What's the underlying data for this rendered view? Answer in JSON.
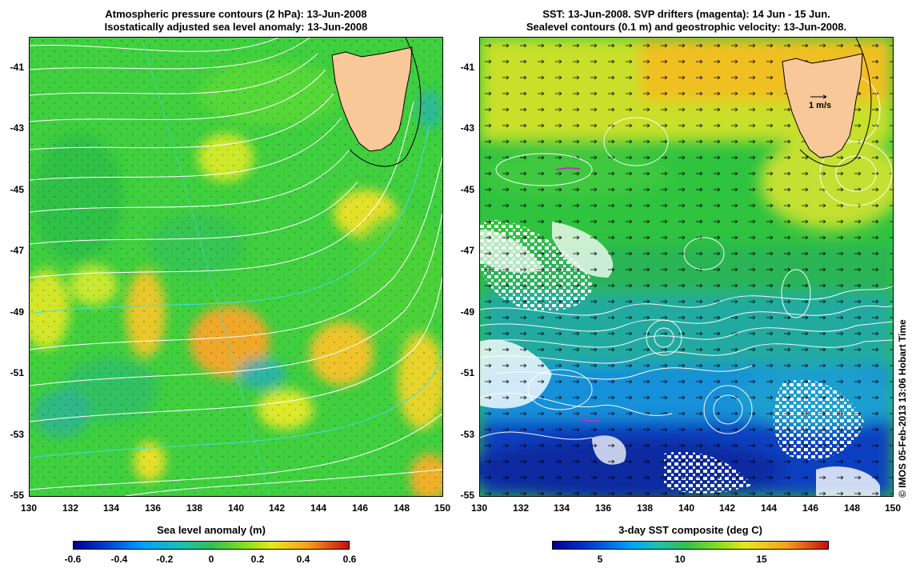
{
  "left_panel": {
    "title_line1": "Atmospheric pressure contours (2 hPa): 13-Jun-2008",
    "title_line2": "Isostatically adjusted sea level anomaly: 13-Jun-2008",
    "y_ticks": [
      "-41",
      "-43",
      "-45",
      "-47",
      "-49",
      "-51",
      "-53",
      "-55"
    ],
    "x_ticks": [
      "130",
      "132",
      "134",
      "136",
      "138",
      "140",
      "142",
      "144",
      "146",
      "148",
      "150"
    ],
    "colorbar_label": "Sea level anomaly (m)",
    "colorbar_ticks": [
      "-0.6",
      "-0.4",
      "-0.2",
      "0",
      "0.2",
      "0.4",
      "0.6"
    ],
    "colorbar_range": [
      -0.6,
      0.6
    ]
  },
  "right_panel": {
    "title_line1": "SST: 13-Jun-2008. SVP drifters (magenta): 14 Jun - 15 Jun.",
    "title_line2": "Sealevel contours (0.1 m) and geostrophic velocity: 13-Jun-2008.",
    "y_ticks": [
      "-41",
      "-43",
      "-45",
      "-47",
      "-49",
      "-51",
      "-53",
      "-55"
    ],
    "x_ticks": [
      "130",
      "132",
      "134",
      "136",
      "138",
      "140",
      "142",
      "144",
      "146",
      "148",
      "150"
    ],
    "colorbar_label": "3-day SST composite (deg C)",
    "colorbar_ticks": [
      "5",
      "10",
      "15"
    ],
    "velocity_scale_label": "1 m/s"
  },
  "map_extent": {
    "lon": [
      130,
      150
    ],
    "lat": [
      -55,
      -40
    ]
  },
  "credit": "© IMOS 05-Feb-2013 13:06 Hobart Time",
  "colors": {
    "land": "#f8c898",
    "sla_green": "#3fcf3f",
    "sst_green": "#2fc33f",
    "contour_white": "#ffffff",
    "contour_cyan": "#40e0e0",
    "drifter": "#c030c0"
  }
}
